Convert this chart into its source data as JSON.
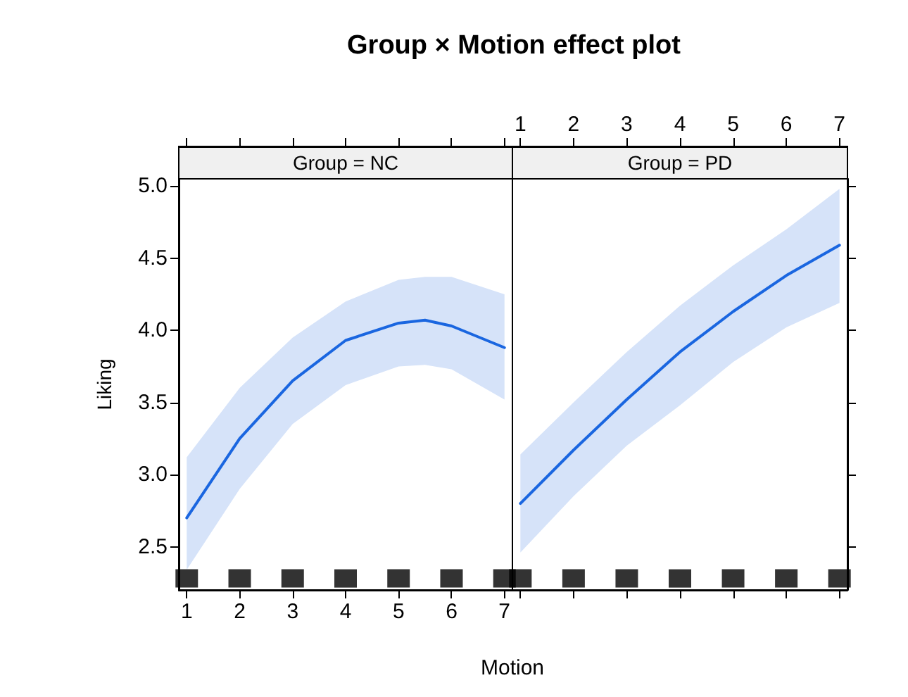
{
  "chart_data": [
    {
      "type": "line",
      "title": "Group × Motion effect plot",
      "subtitle": "Group = NC",
      "xlabel": "Motion",
      "ylabel": "Liking",
      "marker": "none",
      "xlim": [
        0.85,
        7.15
      ],
      "xticks": [
        1,
        2,
        3,
        4,
        5,
        6,
        7
      ],
      "ylim": [
        2.2,
        5.05
      ],
      "yticks": [
        2.5,
        {
          "value": 3,
          "label": "3.0"
        },
        3.5,
        {
          "value": 4,
          "label": "4.0"
        },
        4.5,
        {
          "value": 5,
          "label": "5.0"
        }
      ],
      "series": [
        {
          "color": "#1a66e0",
          "x": [
            1,
            2,
            3,
            4,
            5,
            5.5,
            6,
            7
          ],
          "values": [
            2.7,
            3.25,
            3.65,
            3.93,
            4.05,
            4.07,
            4.03,
            3.88
          ],
          "lower": [
            2.34,
            2.9,
            3.35,
            3.62,
            3.75,
            3.76,
            3.73,
            3.52
          ],
          "upper": [
            3.12,
            3.6,
            3.95,
            4.2,
            4.35,
            4.37,
            4.37,
            4.25
          ]
        },
        {
          "type": "scatter",
          "marker": "square",
          "color": "#000000",
          "x": [
            1,
            2,
            3,
            4,
            5,
            6,
            7
          ],
          "values": [
            2.28,
            2.28,
            2.28,
            2.28,
            2.28,
            2.28,
            2.28
          ]
        }
      ]
    },
    {
      "type": "line",
      "subtitle": "Group = PD",
      "marker": "none",
      "tick_labels": "x",
      "xlim": [
        0.85,
        7.15
      ],
      "xticks": [
        1,
        2,
        3,
        4,
        5,
        6,
        7
      ],
      "ylim": [
        2.2,
        5.05
      ],
      "yticks": [
        2.5,
        3,
        3.5,
        4,
        4.5,
        5
      ],
      "series": [
        {
          "color": "#1a66e0",
          "x": [
            1,
            2,
            3,
            4,
            5,
            6,
            7
          ],
          "values": [
            2.8,
            3.17,
            3.52,
            3.85,
            4.13,
            4.38,
            4.59
          ],
          "lower": [
            2.46,
            2.85,
            3.2,
            3.48,
            3.78,
            4.02,
            4.19
          ],
          "upper": [
            3.14,
            3.5,
            3.85,
            4.17,
            4.45,
            4.7,
            4.98
          ]
        },
        {
          "type": "scatter",
          "marker": "square",
          "color": "#000000",
          "x": [
            1,
            2,
            3,
            4,
            5,
            6,
            7
          ],
          "values": [
            2.28,
            2.28,
            2.28,
            2.28,
            2.28,
            2.28,
            2.28
          ]
        }
      ]
    }
  ]
}
